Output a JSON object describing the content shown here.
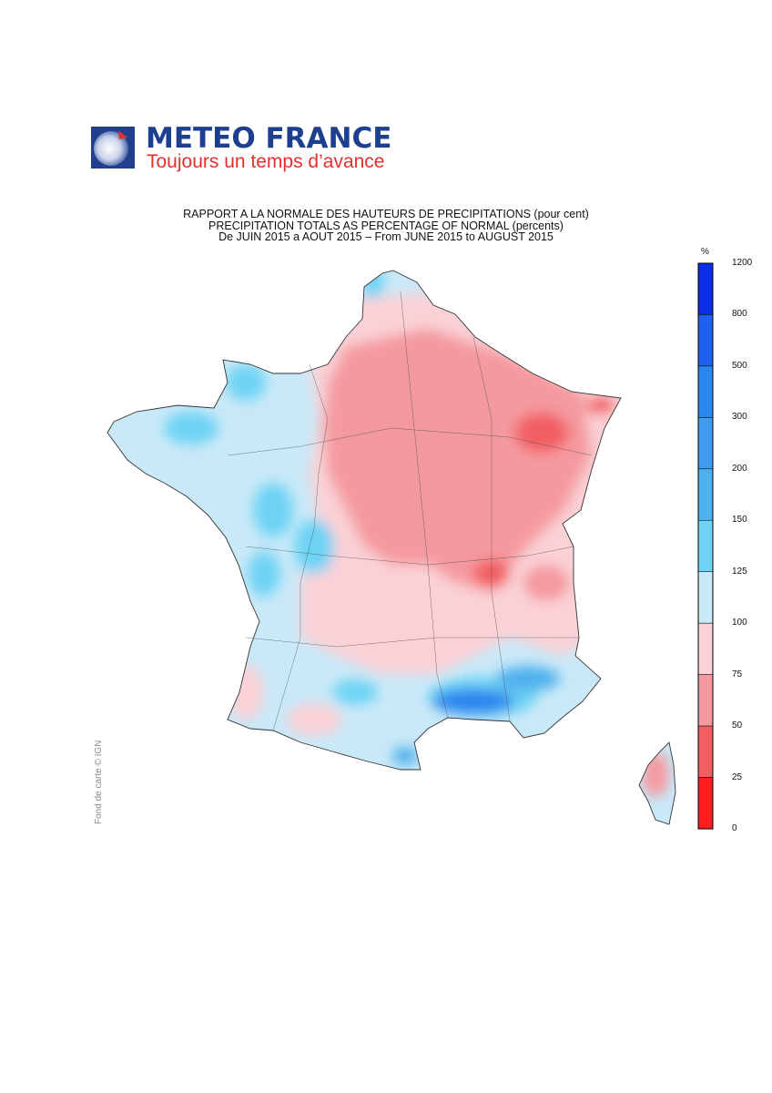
{
  "header": {
    "brand": "METEO FRANCE",
    "tagline": "Toujours un temps d’avance"
  },
  "titles": {
    "line1": "RAPPORT A LA NORMALE DES HAUTEURS DE PRECIPITATIONS (pour cent)",
    "line2": "PRECIPITATION TOTALS AS PERCENTAGE OF NORMAL (percents)",
    "line3": "De JUIN 2015 a AOUT 2015 – From JUNE 2015 to AUGUST 2015"
  },
  "credit": "Fond de carte © IGN",
  "colorbar": {
    "unit": "%",
    "labels": [
      "1200",
      "800",
      "500",
      "300",
      "200",
      "150",
      "125",
      "100",
      "75",
      "50",
      "25",
      "0"
    ],
    "colors": [
      "#0a2ee8",
      "#1c62ee",
      "#2b86ee",
      "#3f9cee",
      "#4fb0ee",
      "#6ed3f4",
      "#c9e9f8",
      "#fad1d6",
      "#f49a9f",
      "#f25f62",
      "#ff1e1e"
    ]
  },
  "legend_palette": {
    "map_light_blue": "#c9e9f8",
    "map_blue": "#6ed3f4",
    "map_dark_blue": "#2b86ee",
    "map_light_red": "#fad1d6",
    "map_red": "#f49a9f",
    "map_dark_red": "#f25f62"
  }
}
